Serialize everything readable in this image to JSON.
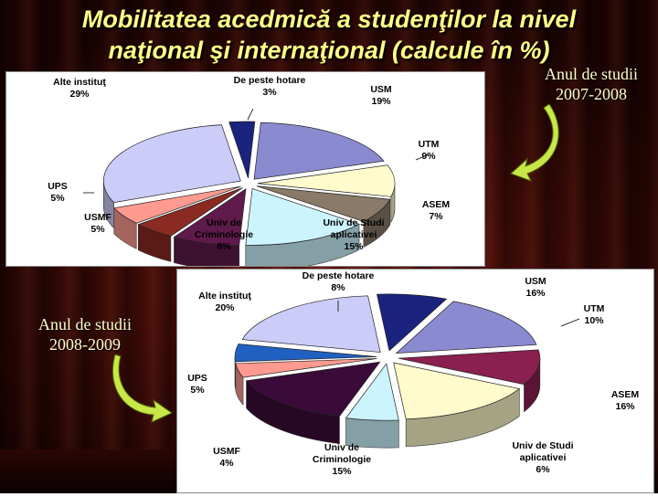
{
  "slide": {
    "title_line1": "Mobilitatea acedmică a studenţilor la nivel",
    "title_line2": "naţional şi internaţional (calcule în %)",
    "year1_label": "Anul de studii",
    "year1_value": "2007-2008",
    "year2_label": "Anul de studii",
    "year2_value": "2008-2009",
    "colors": {
      "title": "#ffff88",
      "background": "#3a0a06"
    }
  },
  "chart_data": [
    {
      "type": "pie",
      "caption": "Anul de studii 2007-2008",
      "slices": [
        {
          "name": "De peste hotare",
          "value": 3,
          "value_label": "3%",
          "color": "#1a237e"
        },
        {
          "name": "USM",
          "value": 19,
          "value_label": "19%",
          "color": "#8a8ad0"
        },
        {
          "name": "UTM",
          "value": 9,
          "value_label": "9%",
          "color": "#fffbcc"
        },
        {
          "name": "ASEM",
          "value": 7,
          "value_label": "7%",
          "color": "#8a7a68"
        },
        {
          "name": "Univ de Studi aplicativei",
          "value": 15,
          "value_label": "15%",
          "color": "#ccf4ff"
        },
        {
          "name": "Univ de Criminologie",
          "value": 8,
          "value_label": "8%",
          "color": "#5e1a4a"
        },
        {
          "name": "USMF",
          "value": 5,
          "value_label": "5%",
          "color": "#8a2a22"
        },
        {
          "name": "UPS",
          "value": 5,
          "value_label": "5%",
          "color": "#ff9a90"
        },
        {
          "name": "Alte instituţ",
          "value": 29,
          "value_label": "29%",
          "color": "#ccccf8"
        }
      ]
    },
    {
      "type": "pie",
      "caption": "Anul de studii 2008-2009",
      "slices": [
        {
          "name": "De peste hotare",
          "value": 8,
          "value_label": "8%",
          "color": "#1a237e"
        },
        {
          "name": "USM",
          "value": 16,
          "value_label": "16%",
          "color": "#8a8ad0"
        },
        {
          "name": "UTM",
          "value": 10,
          "value_label": "10%",
          "color": "#8a2050"
        },
        {
          "name": "ASEM",
          "value": 16,
          "value_label": "16%",
          "color": "#fffbcc"
        },
        {
          "name": "Univ de Studi aplicativei",
          "value": 6,
          "value_label": "6%",
          "color": "#ccf4ff"
        },
        {
          "name": "Univ de Criminologie",
          "value": 15,
          "value_label": "15%",
          "color": "#3a0a38"
        },
        {
          "name": "USMF",
          "value": 4,
          "value_label": "4%",
          "color": "#ff9a90"
        },
        {
          "name": "UPS",
          "value": 5,
          "value_label": "5%",
          "color": "#2060c0"
        },
        {
          "name": "Alte instituţ",
          "value": 20,
          "value_label": "20%",
          "color": "#ccccf8"
        }
      ]
    }
  ]
}
